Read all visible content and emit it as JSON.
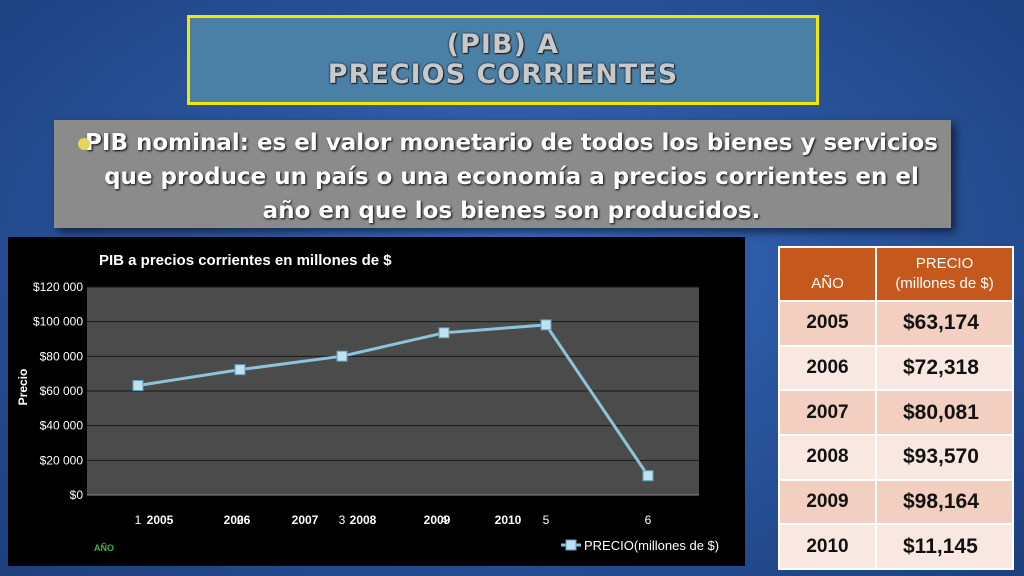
{
  "slide": {
    "title_line1": "(PIB) A",
    "title_line2": "PRECIOS CORRIENTES",
    "definition": "PIB nominal: es el valor monetario de todos los bienes y servicios que produce un país o una economía a precios corrientes en el año en que los bienes son producidos."
  },
  "chart_data": {
    "type": "line",
    "title": "PIB a precios corrientes en millones de $",
    "ylabel": "Precio",
    "xlabel": "AÑO",
    "ylim": [
      0,
      120000
    ],
    "y_ticks": [
      "$0",
      "$20 000",
      "$40 000",
      "$60 000",
      "$80 000",
      "$100 000",
      "$120 000"
    ],
    "x_ticks": [
      "1",
      "2",
      "3",
      "4",
      "5",
      "6"
    ],
    "overlap_year_labels": [
      "2005",
      "2006",
      "2007",
      "2008",
      "2009",
      "2010"
    ],
    "grid": true,
    "legend_position": "bottom-right",
    "series": [
      {
        "name": "PRECIO(millones de $)",
        "x": [
          1,
          2,
          3,
          4,
          5,
          6
        ],
        "values": [
          63174,
          72318,
          80081,
          93570,
          98164,
          11145
        ],
        "color": "#8ec3dc"
      }
    ]
  },
  "table": {
    "headers": {
      "year": "AÑO",
      "price_line1": "PRECIO",
      "price_line2": "(millones de $)"
    },
    "rows": [
      {
        "year": "2005",
        "price": "$63,174"
      },
      {
        "year": "2006",
        "price": "$72,318"
      },
      {
        "year": "2007",
        "price": "$80,081"
      },
      {
        "year": "2008",
        "price": "$93,570"
      },
      {
        "year": "2009",
        "price": "$98,164"
      },
      {
        "year": "2010",
        "price": "$11,145"
      }
    ]
  },
  "colors": {
    "title_border": "#f3e600",
    "table_header": "#c5591d",
    "plot_area": "#4b4b4b",
    "line": "#8ec3dc"
  }
}
